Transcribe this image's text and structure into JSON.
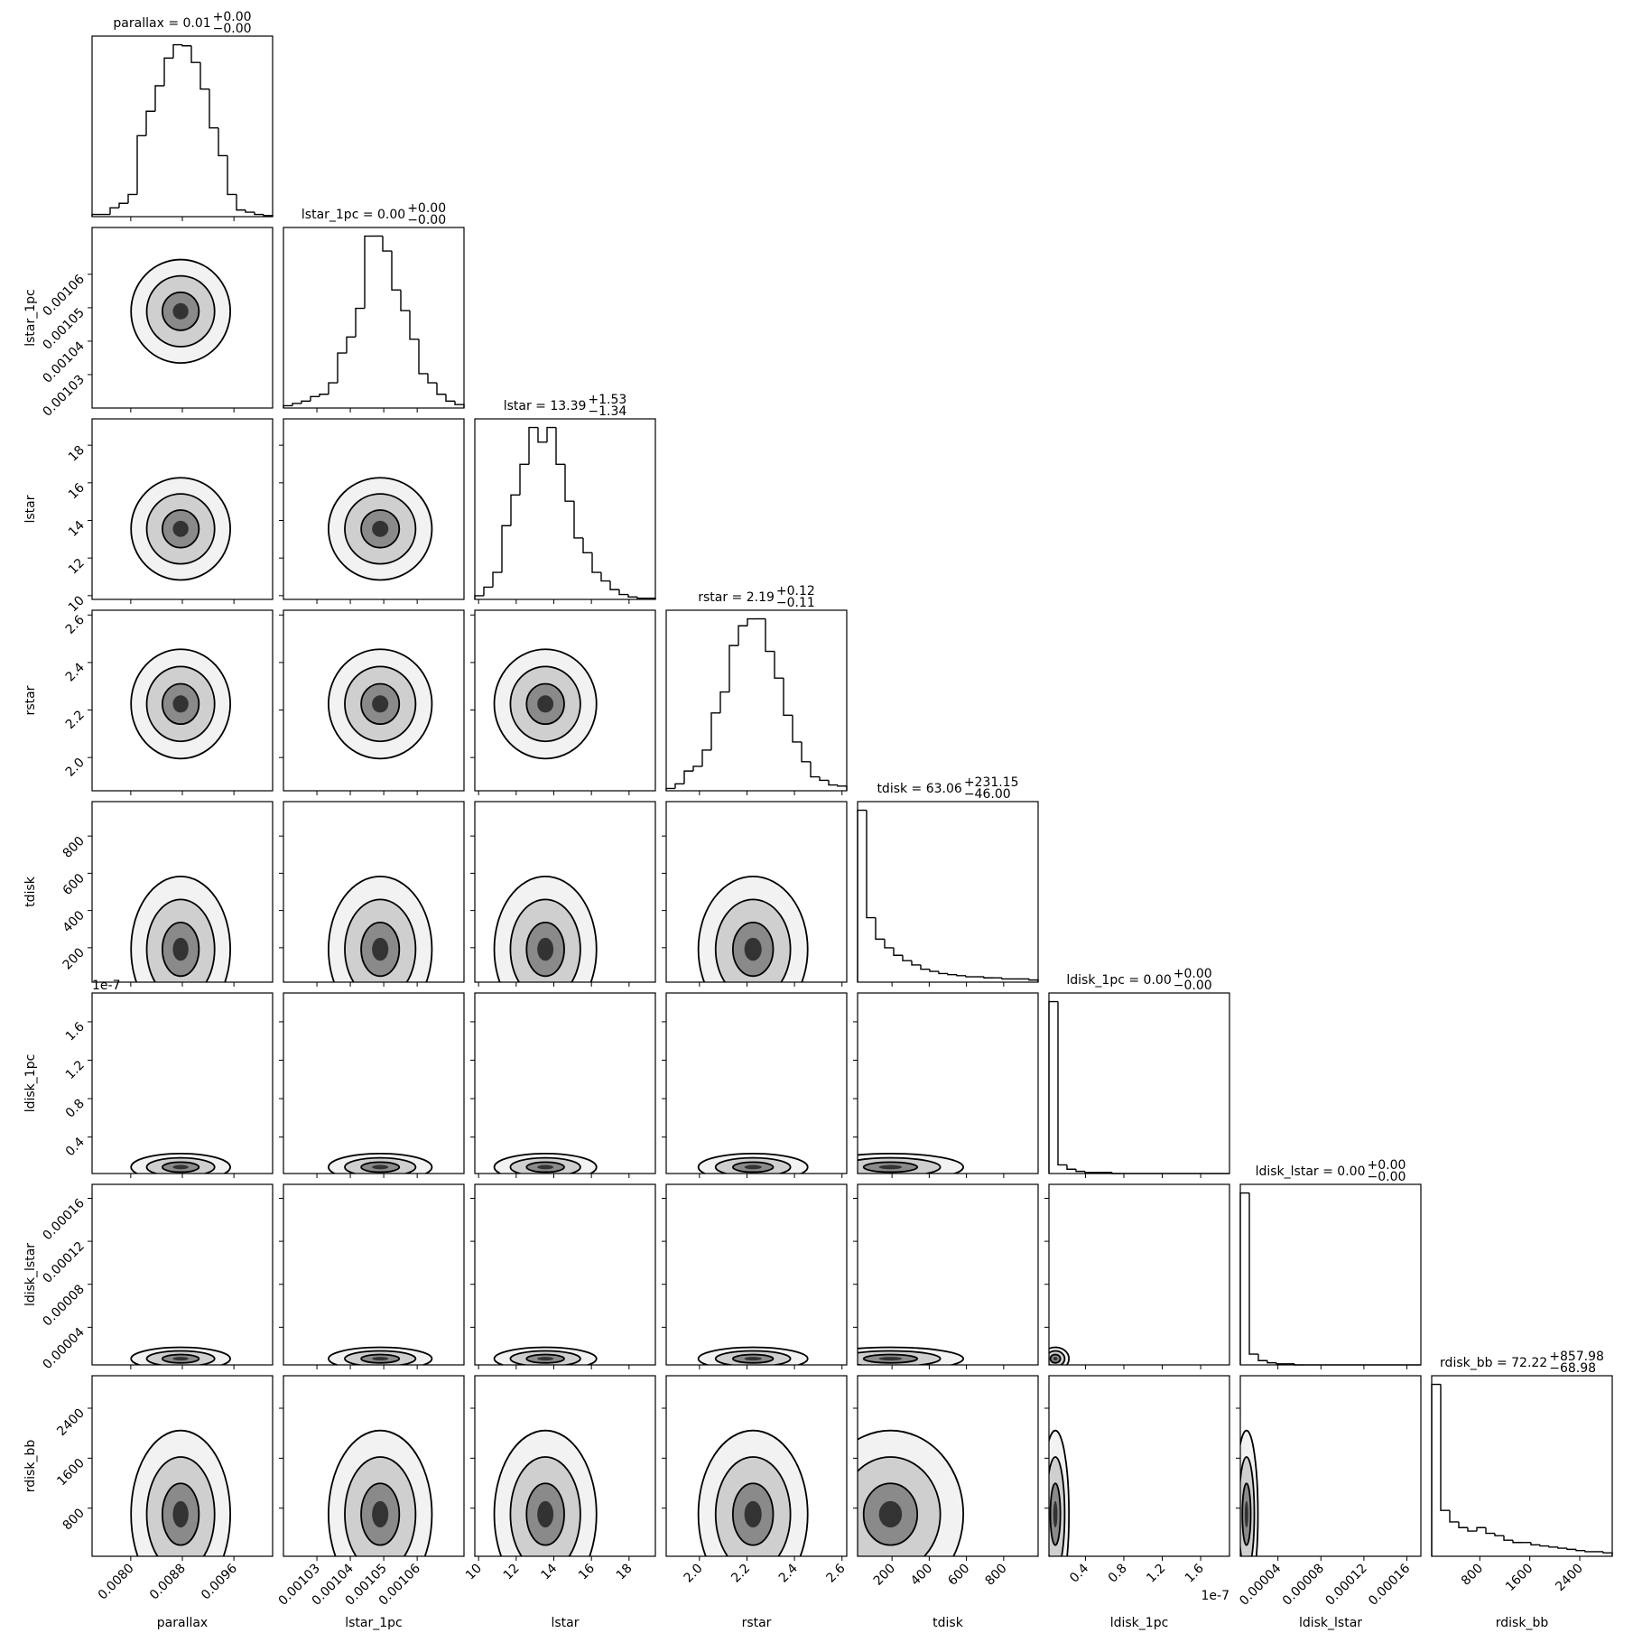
{
  "chart_data": {
    "type": "corner",
    "offset_label": "1e-7",
    "variables": [
      {
        "name": "parallax",
        "title": {
          "main": "parallax = 0.01",
          "plus": "+0.00",
          "minus": "−0.00"
        },
        "lim": [
          0.0074,
          0.0102
        ],
        "ticks": [
          {
            "value": 0.008,
            "label": "0.0080"
          },
          {
            "value": 0.0088,
            "label": "0.0088"
          },
          {
            "value": 0.0096,
            "label": "0.0096"
          }
        ],
        "bins": [
          0.0074,
          0.00754,
          0.00768,
          0.00782,
          0.00796,
          0.0081,
          0.00824,
          0.00838,
          0.00852,
          0.00866,
          0.0088,
          0.00894,
          0.00908,
          0.00922,
          0.00936,
          0.0095,
          0.00964,
          0.00978,
          0.00992,
          0.01006,
          0.0102
        ],
        "counts": [
          2,
          2,
          8,
          12,
          20,
          73,
          95,
          118,
          143,
          155,
          154,
          139,
          115,
          80,
          55,
          20,
          6,
          4,
          2,
          1
        ]
      },
      {
        "name": "lstar_1pc",
        "title": {
          "main": "lstar_1pc = 0.00",
          "plus": "+0.00",
          "minus": "−0.00"
        },
        "lim": [
          0.00102,
          0.001074
        ],
        "ticks": [
          0.00103,
          0.00104,
          0.00105,
          0.00106
        ],
        "bins": [
          0.00102,
          0.0010227,
          0.0010254,
          0.0010281,
          0.0010308,
          0.0010335,
          0.0010362,
          0.0010389,
          0.0010416,
          0.0010443,
          0.001047,
          0.0010497,
          0.0010524,
          0.0010551,
          0.0010578,
          0.0010605,
          0.0010632,
          0.0010659,
          0.0010686,
          0.0010713,
          0.001074
        ],
        "counts": [
          2,
          4,
          6,
          10,
          12,
          22,
          48,
          62,
          87,
          150,
          150,
          137,
          103,
          85,
          60,
          30,
          22,
          12,
          6,
          3
        ]
      },
      {
        "name": "lstar",
        "title": {
          "main": "lstar = 13.39",
          "plus": "+1.53",
          "minus": "−1.34"
        },
        "lim": [
          9.8,
          19.4
        ],
        "ticks": [
          10,
          12,
          14,
          16,
          18
        ],
        "bins": [
          9.8,
          10.28,
          10.76,
          11.24,
          11.72,
          12.2,
          12.68,
          13.16,
          13.64,
          14.12,
          14.6,
          15.08,
          15.56,
          16.04,
          16.52,
          17,
          17.48,
          17.96,
          18.44,
          18.92,
          19.4
        ],
        "counts": [
          3,
          10,
          22,
          60,
          85,
          110,
          140,
          128,
          140,
          110,
          80,
          50,
          38,
          22,
          15,
          8,
          4,
          2,
          1,
          1
        ]
      },
      {
        "name": "rstar",
        "title": {
          "main": "rstar = 2.19",
          "plus": "+0.12",
          "minus": "−0.11"
        },
        "lim": [
          1.86,
          2.62
        ],
        "ticks": [
          {
            "value": 2.0,
            "label": "2.0"
          },
          {
            "value": 2.2,
            "label": "2.2"
          },
          {
            "value": 2.4,
            "label": "2.4"
          },
          {
            "value": 2.6,
            "label": "2.6"
          }
        ],
        "bins": [
          1.86,
          1.898,
          1.936,
          1.974,
          2.012,
          2.05,
          2.088,
          2.126,
          2.164,
          2.202,
          2.24,
          2.278,
          2.316,
          2.354,
          2.392,
          2.43,
          2.468,
          2.506,
          2.544,
          2.582,
          2.62
        ],
        "counts": [
          2,
          6,
          17,
          21,
          35,
          67,
          85,
          125,
          142,
          148,
          148,
          120,
          97,
          65,
          42,
          25,
          12,
          9,
          5,
          4
        ]
      },
      {
        "name": "tdisk",
        "title": {
          "main": "tdisk = 63.06",
          "plus": "+231.15",
          "minus": "−46.00"
        },
        "lim": [
          15,
          985
        ],
        "ticks": [
          200,
          400,
          600,
          800
        ],
        "bins": [
          15,
          63.5,
          112,
          160.5,
          209,
          257.5,
          306,
          354.5,
          403,
          451.5,
          500,
          548.5,
          597,
          645.5,
          694,
          742.5,
          791,
          839.5,
          888,
          936.5,
          985
        ],
        "counts": [
          160,
          60,
          40,
          32,
          25,
          20,
          16,
          12,
          10,
          8,
          7,
          6,
          5,
          5,
          4,
          4,
          3,
          3,
          3,
          2
        ]
      },
      {
        "name": "ldisk_1pc",
        "title": {
          "main": "ldisk_1pc = 0.00",
          "plus": "+0.00",
          "minus": "−0.00"
        },
        "lim": [
          0.02,
          1.9
        ],
        "ticks": [
          0.4,
          0.8,
          1.2,
          1.6
        ],
        "bins": [
          0.02,
          0.114,
          0.208,
          0.302,
          0.396,
          0.49,
          0.584,
          0.678,
          0.772,
          0.866,
          0.96,
          1.054,
          1.148,
          1.242,
          1.336,
          1.43,
          1.524,
          1.618,
          1.712,
          1.806,
          1.9
        ],
        "counts": [
          160,
          8,
          4,
          2,
          1,
          1,
          1,
          0,
          0,
          0,
          0,
          0,
          0,
          0,
          0,
          0,
          0,
          0,
          0,
          0
        ]
      },
      {
        "name": "ldisk_lstar",
        "title": {
          "main": "ldisk_lstar = 0.00",
          "plus": "+0.00",
          "minus": "−0.00"
        },
        "lim": [
          5e-06,
          0.000173
        ],
        "ticks": [
          4e-05,
          8e-05,
          0.00012,
          0.00016
        ],
        "bins": [
          5e-06,
          1.34e-05,
          2.18e-05,
          3.02e-05,
          3.86e-05,
          4.7e-05,
          5.54e-05,
          6.38e-05,
          7.22e-05,
          8.06e-05,
          8.9e-05,
          9.74e-05,
          0.0001058,
          0.0001142,
          0.0001226,
          0.000131,
          0.0001394,
          0.0001478,
          0.0001562,
          0.0001646,
          0.000173
        ],
        "counts": [
          160,
          10,
          4,
          2,
          1,
          1,
          0,
          0,
          0,
          0,
          0,
          0,
          0,
          0,
          0,
          0,
          0,
          0,
          0,
          0
        ]
      },
      {
        "name": "rdisk_bb",
        "title": {
          "main": "rdisk_bb = 72.22",
          "plus": "+857.98",
          "minus": "−68.98"
        },
        "lim": [
          30,
          2920
        ],
        "ticks": [
          800,
          1600,
          2400
        ],
        "bins": [
          30,
          174.5,
          319,
          463.5,
          608,
          752.5,
          897,
          1041.5,
          1186,
          1330.5,
          1475,
          1619.5,
          1764,
          1908.5,
          2053,
          2197.5,
          2342,
          2486.5,
          2631,
          2775.5,
          2920
        ],
        "counts": [
          150,
          40,
          30,
          25,
          22,
          25,
          20,
          18,
          14,
          12,
          12,
          10,
          9,
          8,
          7,
          6,
          5,
          4,
          4,
          3
        ]
      }
    ]
  }
}
